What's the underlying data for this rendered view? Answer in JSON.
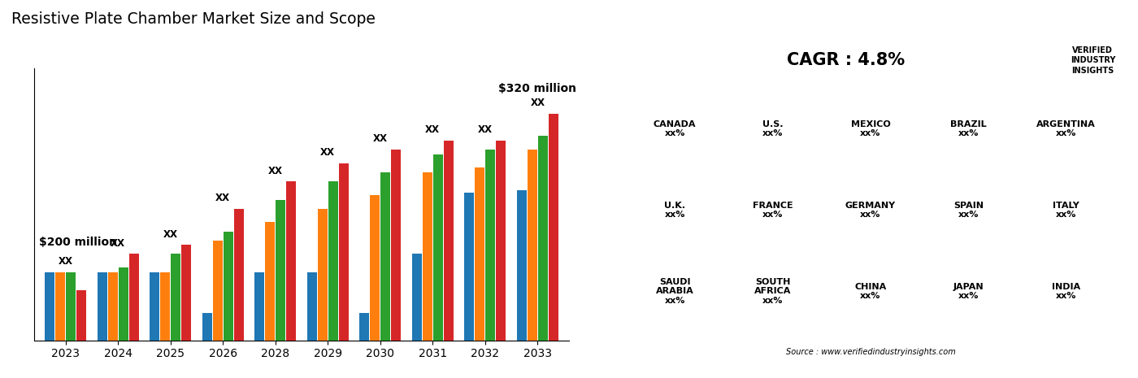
{
  "chart_data": {
    "type": "bar",
    "title": "Resistive Plate Chamber Market Size and Scope",
    "categories": [
      "2023",
      "2024",
      "2025",
      "2026",
      "2028",
      "2029",
      "2030",
      "2031",
      "2032",
      "2033"
    ],
    "series": [
      {
        "values": [
          0.3,
          0.3,
          0.3,
          0.12,
          0.3,
          0.3,
          0.12,
          0.38,
          0.65,
          0.66
        ]
      },
      {
        "values": [
          0.3,
          0.3,
          0.3,
          0.44,
          0.52,
          0.58,
          0.64,
          0.74,
          0.76,
          0.84
        ]
      },
      {
        "values": [
          0.3,
          0.32,
          0.38,
          0.48,
          0.62,
          0.7,
          0.74,
          0.82,
          0.84,
          0.9
        ]
      },
      {
        "values": [
          0.22,
          0.38,
          0.42,
          0.58,
          0.7,
          0.78,
          0.84,
          0.88,
          0.88,
          1.0
        ]
      }
    ],
    "ylim": [
      0,
      1.2
    ],
    "tick_labels": "x",
    "grid": false,
    "annotations": {
      "group_label": "XX",
      "start_label": "$200 million",
      "end_label": "$320 million",
      "cagr": "CAGR : 4.8%",
      "source": "Source : www.verifiedindustryinsights.com",
      "logo": "VERIFIED\nINDUSTRY\nINSIGHTS",
      "regions": [
        "CANADA\nxx%",
        "U.S.\nxx%",
        "MEXICO\nxx%",
        "BRAZIL\nxx%",
        "ARGENTINA\nxx%",
        "U.K.\nxx%",
        "FRANCE\nxx%",
        "GERMANY\nxx%",
        "SPAIN\nxx%",
        "ITALY\nxx%",
        "SAUDI\nARABIA\nxx%",
        "SOUTH\nAFRICA\nxx%",
        "CHINA\nxx%",
        "JAPAN\nxx%",
        "INDIA\nxx%"
      ]
    }
  }
}
